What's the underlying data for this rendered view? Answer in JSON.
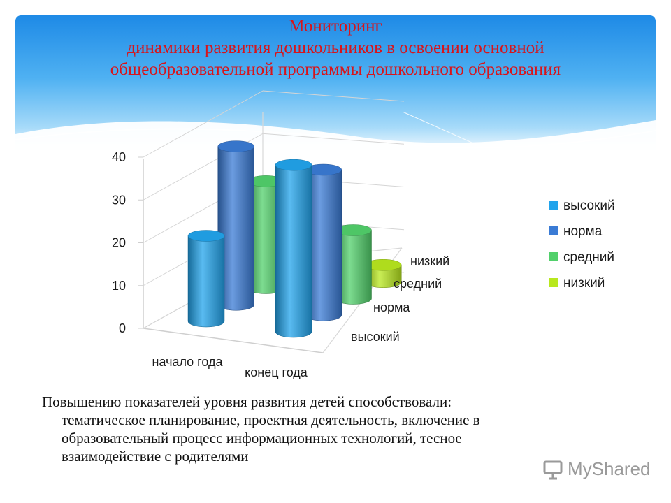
{
  "title": {
    "line1": "Мониторинг",
    "line2": "динамики развития дошкольников в освоении основной",
    "line3": "общеобразовательной программы дошкольного образования"
  },
  "chart_data": {
    "type": "bar",
    "style": "3d-cylinder",
    "categories": [
      "начало года",
      "конец года"
    ],
    "depth_labels": [
      "высокий",
      "норма",
      "средний",
      "низкий"
    ],
    "series": [
      {
        "name": "высокий",
        "values": [
          20,
          39
        ],
        "color": "#22a4ec"
      },
      {
        "name": "норма",
        "values": [
          37,
          34
        ],
        "color": "#3a7bd5"
      },
      {
        "name": "средний",
        "values": [
          25,
          16
        ],
        "color": "#52d06b"
      },
      {
        "name": "низкий",
        "values": [
          0,
          4
        ],
        "color": "#b8e81e"
      }
    ],
    "y_ticks": [
      "0",
      "10",
      "20",
      "30",
      "40"
    ],
    "ylim": [
      0,
      40
    ],
    "grid": true,
    "legend_position": "right"
  },
  "body": {
    "line1": "Повышению показателей уровня развития детей способствовали:",
    "line2": "тематическое планирование, проектная деятельность, включение в",
    "line3": "образовательный процесс информационных технологий, тесное",
    "line4": "взаимодействие с родителями"
  },
  "watermark": {
    "text": "MyShared",
    "icon": "presentation-board-icon"
  }
}
